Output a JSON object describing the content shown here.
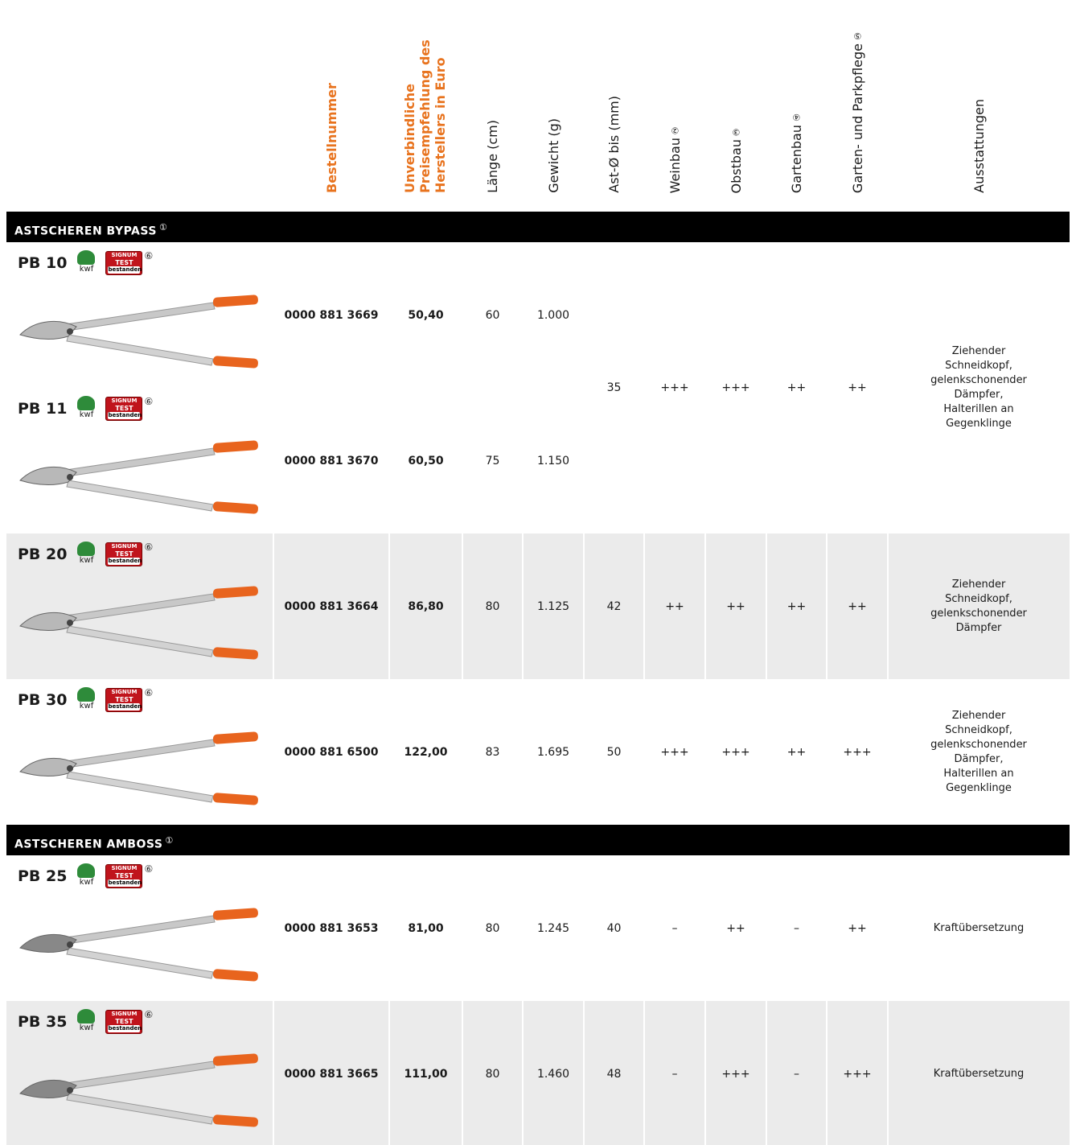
{
  "header": {
    "columns": [
      {
        "label": "Bestellnummer"
      },
      {
        "label": "Unverbindliche Preisempfehlung des Herstellers in Euro"
      },
      {
        "label": "Länge (cm)"
      },
      {
        "label": "Gewicht (g)"
      },
      {
        "label": "Ast-Ø bis (mm)"
      },
      {
        "label": "Weinbau",
        "note": "②"
      },
      {
        "label": "Obstbau",
        "note": "③"
      },
      {
        "label": "Gartenbau",
        "note": "④"
      },
      {
        "label": "Garten- und Parkpflege",
        "note": "⑤"
      },
      {
        "label": "Ausstattungen"
      }
    ]
  },
  "badges": {
    "kwf": "kwf",
    "signum": "SIGNUM",
    "test": "TEST",
    "passed": "bestanden",
    "note": "⑥"
  },
  "sections": [
    {
      "title": "ASTSCHEREN BYPASS",
      "note": "①",
      "groups": [
        {
          "shade": false,
          "items": [
            {
              "model": "PB 10",
              "order_no": "0000 881 3669",
              "price": "50,40",
              "length": "60",
              "weight": "1.000"
            },
            {
              "model": "PB 11",
              "order_no": "0000 881 3670",
              "price": "60,50",
              "length": "75",
              "weight": "1.150"
            }
          ],
          "branch": "35",
          "weinbau": "+++",
          "obstbau": "+++",
          "gartenbau": "++",
          "park": "++",
          "features": [
            "Ziehender Schneidkopf,",
            "gelenkschonender Dämpfer,",
            "Halterillen an Gegenklinge"
          ]
        },
        {
          "shade": true,
          "items": [
            {
              "model": "PB 20",
              "order_no": "0000 881 3664",
              "price": "86,80",
              "length": "80",
              "weight": "1.125"
            }
          ],
          "branch": "42",
          "weinbau": "++",
          "obstbau": "++",
          "gartenbau": "++",
          "park": "++",
          "features": [
            "Ziehender Schneidkopf,",
            "gelenkschonender Dämpfer"
          ]
        },
        {
          "shade": false,
          "items": [
            {
              "model": "PB 30",
              "order_no": "0000 881 6500",
              "price": "122,00",
              "length": "83",
              "weight": "1.695"
            }
          ],
          "branch": "50",
          "weinbau": "+++",
          "obstbau": "+++",
          "gartenbau": "++",
          "park": "+++",
          "features": [
            "Ziehender Schneidkopf,",
            "gelenkschonender Dämpfer,",
            "Halterillen an Gegenklinge"
          ]
        }
      ]
    },
    {
      "title": "ASTSCHEREN AMBOSS",
      "note": "①",
      "groups": [
        {
          "shade": false,
          "items": [
            {
              "model": "PB 25",
              "order_no": "0000 881 3653",
              "price": "81,00",
              "length": "80",
              "weight": "1.245"
            }
          ],
          "branch": "40",
          "weinbau": "–",
          "obstbau": "++",
          "gartenbau": "–",
          "park": "++",
          "features": [
            "Kraftübersetzung"
          ]
        },
        {
          "shade": true,
          "items": [
            {
              "model": "PB 35",
              "order_no": "0000 881 3665",
              "price": "111,00",
              "length": "80",
              "weight": "1.460"
            }
          ],
          "branch": "48",
          "weinbau": "–",
          "obstbau": "+++",
          "gartenbau": "–",
          "park": "+++",
          "features": [
            "Kraftübersetzung"
          ]
        }
      ]
    }
  ]
}
